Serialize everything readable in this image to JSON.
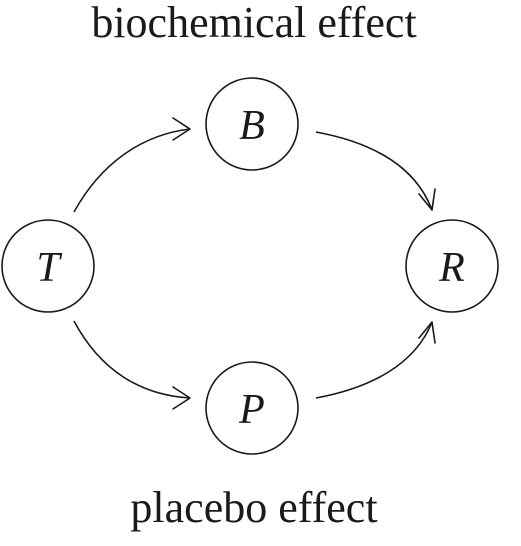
{
  "labels": {
    "top": "biochemical effect",
    "bottom": "placebo effect"
  },
  "nodes": [
    {
      "id": "T",
      "label": "T"
    },
    {
      "id": "B",
      "label": "B"
    },
    {
      "id": "P",
      "label": "P"
    },
    {
      "id": "R",
      "label": "R"
    }
  ],
  "edges": [
    {
      "from": "T",
      "to": "B"
    },
    {
      "from": "B",
      "to": "R"
    },
    {
      "from": "T",
      "to": "P"
    },
    {
      "from": "P",
      "to": "R"
    }
  ],
  "colors": {
    "stroke": "#1a1a1a",
    "background": "#ffffff"
  }
}
